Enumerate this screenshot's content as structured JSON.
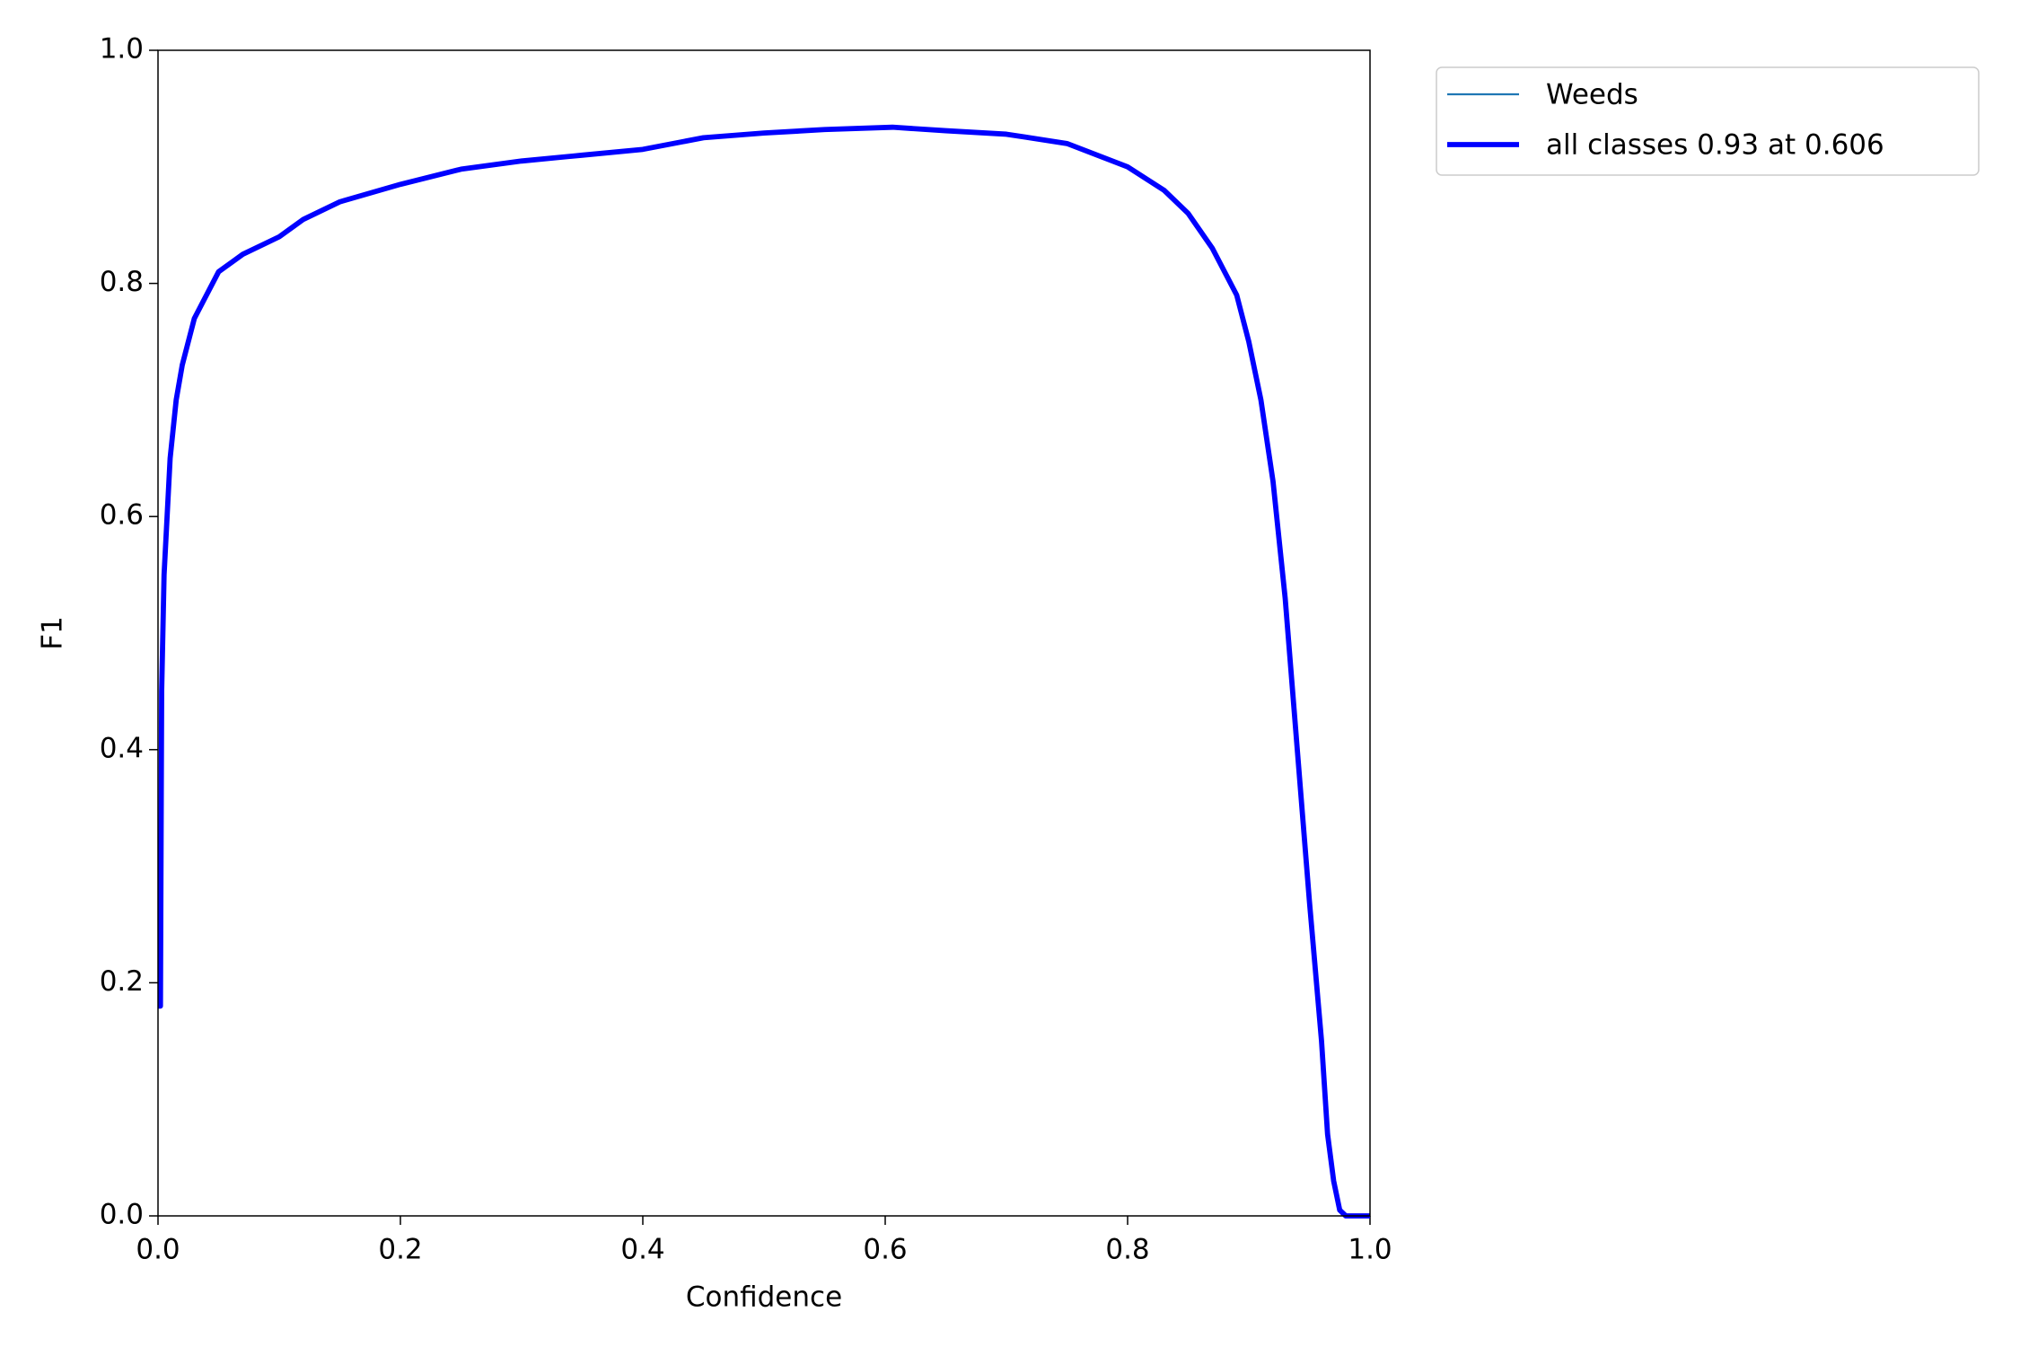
{
  "chart_data": {
    "type": "line",
    "xlabel": "Confidence",
    "ylabel": "F1",
    "x": [
      0.0,
      0.002,
      0.003,
      0.005,
      0.01,
      0.015,
      0.02,
      0.03,
      0.04,
      0.05,
      0.07,
      0.1,
      0.12,
      0.15,
      0.2,
      0.25,
      0.3,
      0.35,
      0.4,
      0.45,
      0.5,
      0.55,
      0.606,
      0.65,
      0.7,
      0.75,
      0.8,
      0.83,
      0.85,
      0.87,
      0.89,
      0.9,
      0.91,
      0.92,
      0.93,
      0.94,
      0.95,
      0.96,
      0.965,
      0.97,
      0.975,
      0.98,
      1.0
    ],
    "series": [
      {
        "name": "Weeds",
        "color": "#1f77b4",
        "width": 1.5,
        "values": [
          0.18,
          0.18,
          0.45,
          0.55,
          0.65,
          0.7,
          0.73,
          0.77,
          0.79,
          0.81,
          0.825,
          0.84,
          0.855,
          0.87,
          0.885,
          0.898,
          0.905,
          0.91,
          0.915,
          0.925,
          0.929,
          0.932,
          0.934,
          0.931,
          0.928,
          0.92,
          0.9,
          0.88,
          0.86,
          0.83,
          0.79,
          0.75,
          0.7,
          0.63,
          0.53,
          0.4,
          0.27,
          0.15,
          0.07,
          0.03,
          0.005,
          0.0,
          0.0
        ]
      },
      {
        "name": "all classes 0.93 at 0.606",
        "color": "#0000ff",
        "width": 4,
        "values": [
          0.18,
          0.18,
          0.45,
          0.55,
          0.65,
          0.7,
          0.73,
          0.77,
          0.79,
          0.81,
          0.825,
          0.84,
          0.855,
          0.87,
          0.885,
          0.898,
          0.905,
          0.91,
          0.915,
          0.925,
          0.929,
          0.932,
          0.934,
          0.931,
          0.928,
          0.92,
          0.9,
          0.88,
          0.86,
          0.83,
          0.79,
          0.75,
          0.7,
          0.63,
          0.53,
          0.4,
          0.27,
          0.15,
          0.07,
          0.03,
          0.005,
          0.0,
          0.0
        ]
      }
    ],
    "xlim": [
      0,
      1
    ],
    "ylim": [
      0,
      1
    ],
    "xticks": [
      {
        "value": 0,
        "label": "0.0"
      },
      0.2,
      0.4,
      0.6,
      0.8,
      {
        "value": 1,
        "label": "1.0"
      }
    ],
    "yticks": [
      {
        "value": 0,
        "label": "0.0"
      },
      0.2,
      0.4,
      0.6,
      0.8,
      {
        "value": 1,
        "label": "1.0"
      }
    ],
    "grid": false,
    "legend": "outside upper right"
  }
}
